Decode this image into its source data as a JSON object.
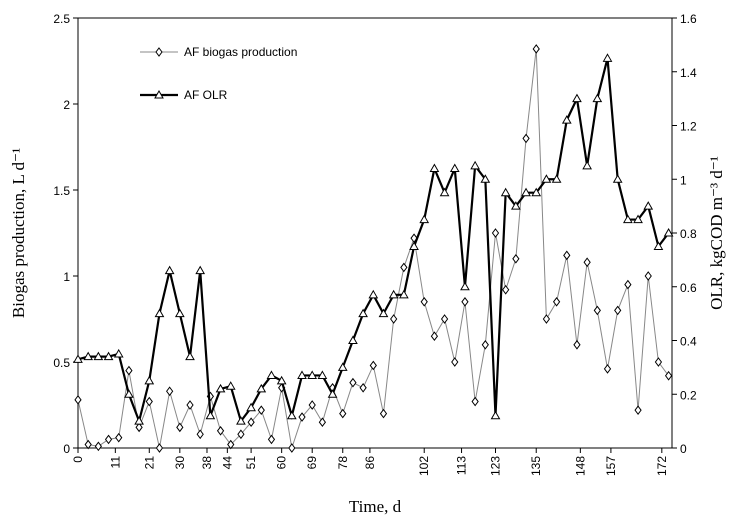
{
  "chart_data": {
    "type": "line",
    "x_label": "Time, d",
    "y_label": "Biogas production, L d⁻¹",
    "y2_label": "OLR, kgCOD m⁻³ d⁻¹",
    "x": [
      0,
      3,
      6,
      9,
      12,
      15,
      18,
      21,
      24,
      27,
      30,
      33,
      36,
      39,
      42,
      45,
      48,
      51,
      54,
      57,
      60,
      63,
      66,
      69,
      72,
      75,
      78,
      81,
      84,
      87,
      90,
      93,
      96,
      99,
      102,
      105,
      108,
      111,
      114,
      117,
      120,
      123,
      126,
      129,
      132,
      135,
      138,
      141,
      144,
      147,
      150,
      153,
      156,
      159,
      162,
      165,
      168,
      171,
      174
    ],
    "xlim": [
      0,
      175
    ],
    "xticks": [
      0,
      11,
      21,
      30,
      38,
      44,
      51,
      60,
      69,
      78,
      86,
      102,
      113,
      123,
      135,
      148,
      157,
      172
    ],
    "ylim": [
      0,
      2.5
    ],
    "yticks": [
      0,
      0.5,
      1,
      1.5,
      2,
      2.5
    ],
    "y2lim": [
      0,
      1.6
    ],
    "y2ticks": [
      0,
      0.2,
      0.4,
      0.6,
      0.8,
      1,
      1.2,
      1.4,
      1.6
    ],
    "series": [
      {
        "name": "AF biogas production",
        "color": "#888888",
        "marker": "diamond",
        "values": [
          0.28,
          0.02,
          0.01,
          0.05,
          0.06,
          0.45,
          0.12,
          0.27,
          0.0,
          0.33,
          0.12,
          0.25,
          0.08,
          0.3,
          0.1,
          0.02,
          0.08,
          0.15,
          0.22,
          0.05,
          0.35,
          0.0,
          0.18,
          0.25,
          0.15,
          0.35,
          0.2,
          0.38,
          0.35,
          0.48,
          0.2,
          0.75,
          1.05,
          1.22,
          0.85,
          0.65,
          0.75,
          0.5,
          0.85,
          0.27,
          0.6,
          1.25,
          0.92,
          1.1,
          1.8,
          2.32,
          0.75,
          0.85,
          1.12,
          0.6,
          1.08,
          0.8,
          0.46,
          0.8,
          0.95,
          0.22,
          1.0,
          0.5,
          0.42
        ]
      },
      {
        "name": "AF OLR",
        "color": "#000000",
        "marker": "triangle",
        "axis": "y2",
        "values": [
          0.33,
          0.34,
          0.34,
          0.34,
          0.35,
          0.2,
          0.1,
          0.25,
          0.5,
          0.66,
          0.5,
          0.34,
          0.66,
          0.12,
          0.22,
          0.23,
          0.1,
          0.15,
          0.22,
          0.27,
          0.25,
          0.12,
          0.27,
          0.27,
          0.27,
          0.2,
          0.3,
          0.4,
          0.5,
          0.57,
          0.5,
          0.57,
          0.57,
          0.75,
          0.85,
          1.04,
          0.95,
          1.04,
          0.6,
          1.05,
          1.0,
          0.12,
          0.95,
          0.9,
          0.95,
          0.95,
          1.0,
          1.0,
          1.22,
          1.3,
          1.05,
          1.3,
          1.45,
          1.0,
          0.85,
          0.85,
          0.9,
          0.75,
          0.8
        ]
      }
    ]
  }
}
